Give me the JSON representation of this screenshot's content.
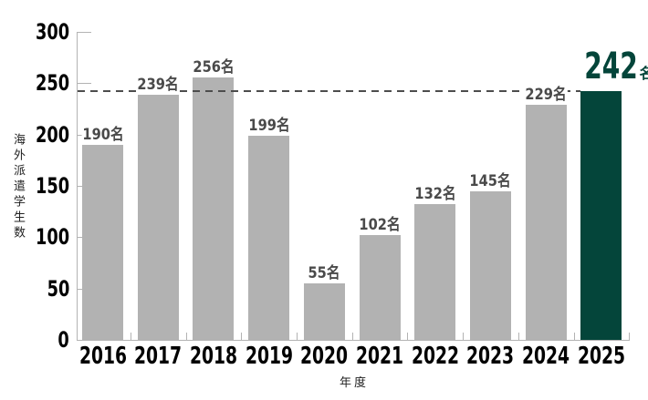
{
  "chart_data": {
    "type": "bar",
    "title": "",
    "xlabel": "年度",
    "ylabel": "海外派遣学生数",
    "categories": [
      "2016",
      "2017",
      "2018",
      "2019",
      "2020",
      "2021",
      "2022",
      "2023",
      "2024",
      "2025"
    ],
    "values": [
      190,
      239,
      256,
      199,
      55,
      102,
      132,
      145,
      229,
      242
    ],
    "value_unit": "名",
    "value_labels": [
      "190名",
      "239名",
      "256名",
      "199名",
      "55名",
      "102名",
      "132名",
      "145名",
      "229名",
      "242名"
    ],
    "ylim": [
      0,
      300
    ],
    "yticks": [
      0,
      50,
      100,
      150,
      200,
      250,
      300
    ],
    "grid": false,
    "legend": null,
    "highlight": {
      "index": 9,
      "category": "2025",
      "value": 242,
      "label_number": "242",
      "label_suffix": "名"
    },
    "reference_line": {
      "value": 242,
      "style": "dashed"
    },
    "colors": {
      "bar": "#b2b2b2",
      "highlight_bar": "#04453a",
      "highlight_text": "#04453a",
      "value_label": "#4a4a4a",
      "axis": "#b3b3b3",
      "reference_line": "#4d4d4d",
      "tick_text": "#000000",
      "background": "#ffffff"
    }
  }
}
